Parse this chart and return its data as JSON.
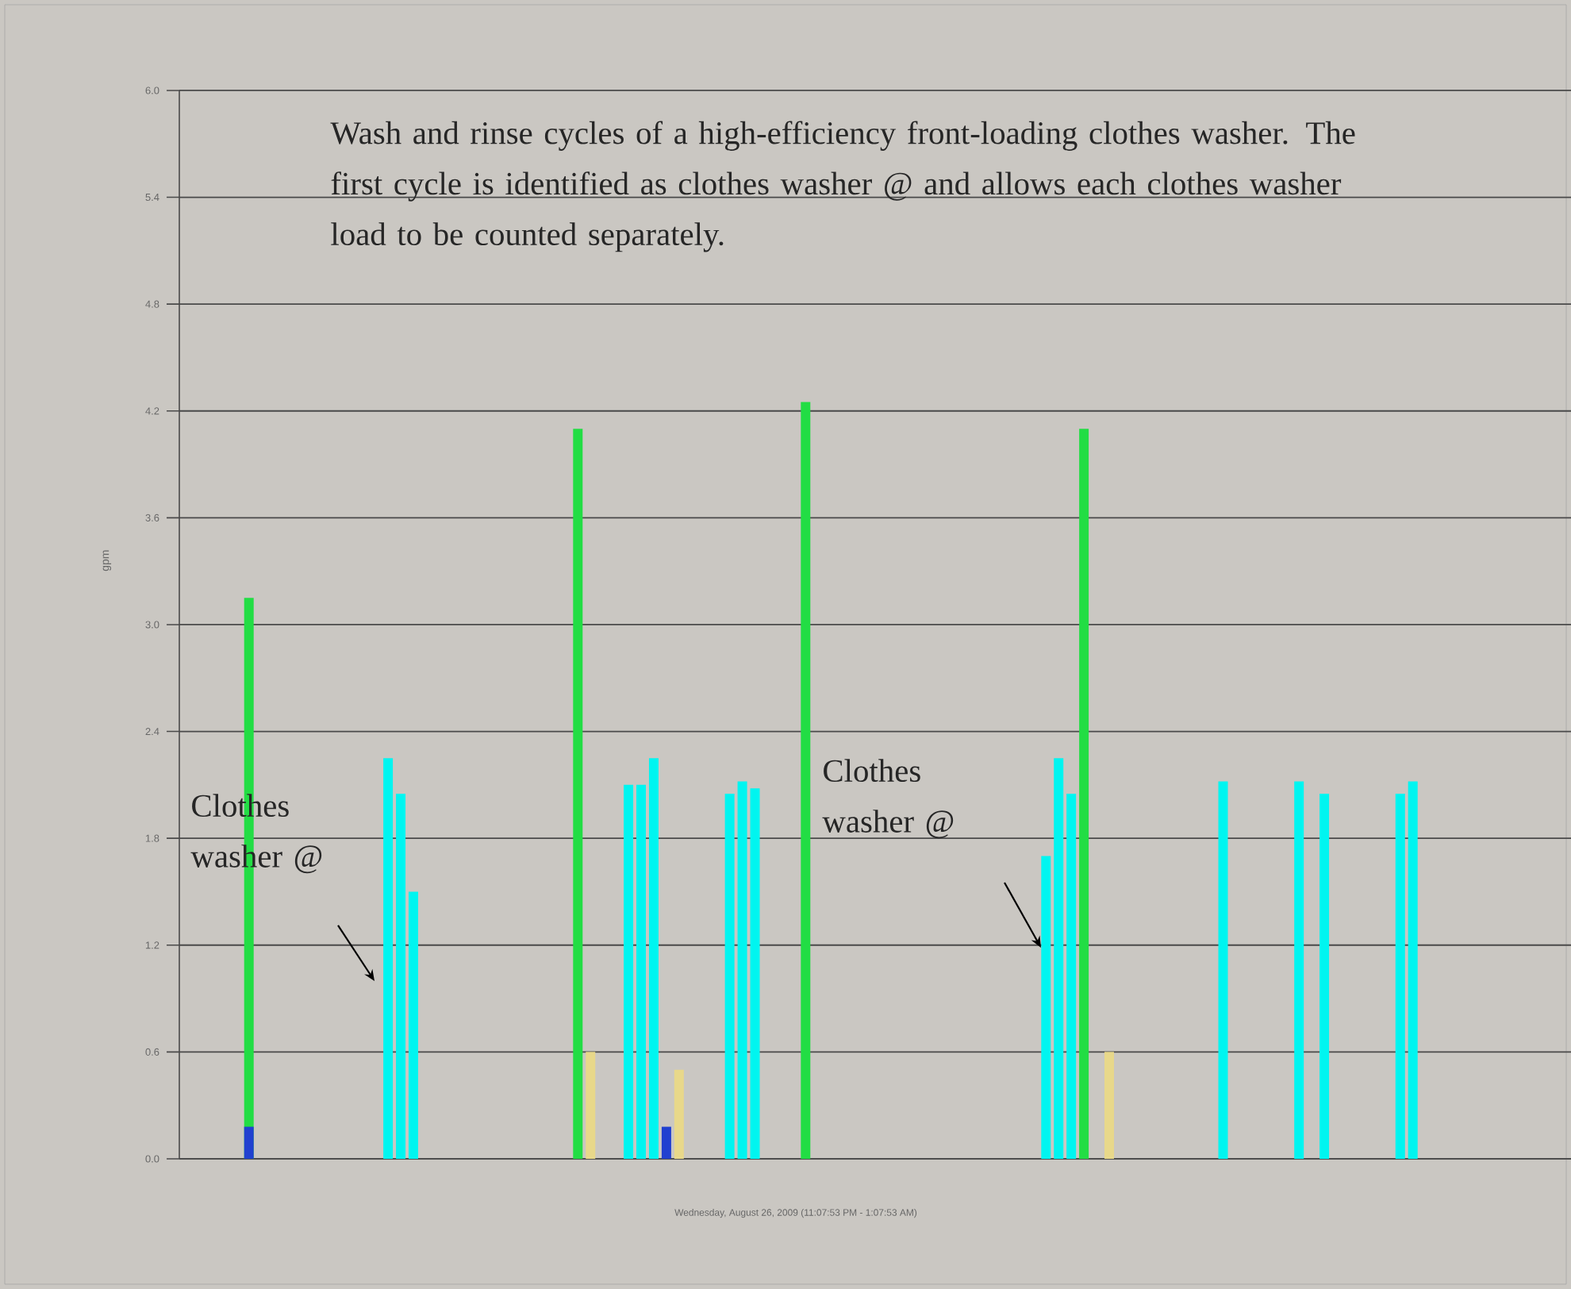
{
  "chart_data": {
    "type": "bar",
    "xlabel": "Wednesday, August 26, 2009 (11:07:53 PM - 1:07:53 AM)",
    "ylabel": "gpm",
    "categories": [
      null,
      null,
      null,
      null,
      null,
      null,
      null,
      null,
      null,
      null,
      null,
      null,
      null,
      null,
      null,
      null,
      null,
      null,
      null,
      null,
      null,
      null,
      null,
      null,
      null,
      null,
      null,
      null,
      null,
      null,
      null,
      null,
      null,
      null,
      null,
      null,
      null,
      null,
      null,
      null,
      null,
      null,
      null,
      null,
      null,
      null,
      null,
      null,
      null,
      null,
      null,
      null,
      null,
      null,
      null,
      null,
      null,
      null,
      null,
      null,
      null,
      null,
      null,
      null,
      null,
      null,
      null,
      null,
      null,
      null,
      null,
      null,
      null,
      null,
      null,
      null,
      null,
      null,
      null,
      null,
      null,
      null,
      null,
      null,
      null,
      null,
      null,
      null,
      null,
      null,
      null,
      null,
      null,
      null,
      null,
      null,
      null,
      null,
      null,
      null,
      null,
      null,
      null,
      null,
      null,
      null,
      null,
      null,
      null,
      null
    ],
    "series": [
      {
        "color": "#22dd44",
        "values": [
          null,
          null,
          null,
          null,
          null,
          3.15,
          null,
          null,
          null,
          null,
          null,
          null,
          null,
          null,
          null,
          null,
          null,
          null,
          null,
          null,
          null,
          null,
          null,
          null,
          null,
          null,
          null,
          null,
          null,
          null,
          null,
          4.1,
          null,
          null,
          null,
          null,
          null,
          null,
          null,
          null,
          null,
          null,
          null,
          null,
          null,
          null,
          null,
          null,
          null,
          4.25,
          null,
          null,
          null,
          null,
          null,
          null,
          null,
          null,
          null,
          null,
          null,
          null,
          null,
          null,
          null,
          null,
          null,
          null,
          null,
          null,
          null,
          4.1,
          null,
          null,
          null,
          null,
          null,
          null,
          null,
          null,
          null,
          null,
          null,
          null,
          null,
          null,
          null,
          null,
          null,
          null,
          null,
          null,
          null,
          null,
          null,
          null,
          null,
          null,
          null,
          null,
          null,
          null,
          null,
          null,
          null,
          null,
          null,
          null,
          null,
          null
        ]
      },
      {
        "color": "#00f5f0",
        "values": [
          null,
          null,
          null,
          null,
          null,
          null,
          null,
          null,
          null,
          null,
          null,
          null,
          null,
          null,
          null,
          null,
          2.25,
          2.05,
          1.5,
          null,
          null,
          null,
          null,
          null,
          null,
          null,
          null,
          null,
          null,
          null,
          null,
          null,
          null,
          null,
          null,
          2.1,
          2.1,
          2.25,
          null,
          null,
          null,
          null,
          null,
          2.05,
          2.12,
          2.08,
          null,
          null,
          null,
          null,
          null,
          null,
          null,
          null,
          null,
          null,
          null,
          null,
          null,
          null,
          null,
          null,
          null,
          null,
          null,
          null,
          null,
          null,
          1.7,
          2.25,
          2.05,
          null,
          null,
          null,
          null,
          null,
          null,
          null,
          null,
          null,
          null,
          null,
          2.12,
          null,
          null,
          null,
          null,
          null,
          2.12,
          null,
          2.05,
          null,
          null,
          null,
          null,
          null,
          2.05,
          2.12,
          null,
          null,
          null,
          null,
          null,
          null,
          null,
          null,
          null,
          null,
          null,
          null
        ]
      },
      {
        "color": "#e8d88a",
        "values": [
          null,
          null,
          null,
          null,
          null,
          null,
          null,
          null,
          null,
          null,
          null,
          null,
          null,
          null,
          null,
          null,
          null,
          null,
          null,
          null,
          null,
          null,
          null,
          null,
          null,
          null,
          null,
          null,
          null,
          null,
          null,
          null,
          0.6,
          null,
          null,
          null,
          null,
          null,
          null,
          0.5,
          null,
          null,
          null,
          null,
          null,
          null,
          null,
          null,
          null,
          null,
          null,
          null,
          null,
          null,
          null,
          null,
          null,
          null,
          null,
          null,
          null,
          null,
          null,
          null,
          null,
          null,
          null,
          null,
          null,
          null,
          null,
          null,
          null,
          0.6,
          null,
          null,
          null,
          null,
          null,
          null,
          null,
          null,
          null,
          null,
          null,
          null,
          null,
          null,
          null,
          null,
          null,
          null,
          null,
          null,
          null,
          null,
          null,
          null,
          null,
          null,
          null,
          null,
          null,
          null,
          null,
          null,
          null,
          null,
          null,
          null
        ]
      },
      {
        "color": "#2040d0",
        "values": [
          null,
          null,
          null,
          null,
          null,
          0.18,
          null,
          null,
          null,
          null,
          null,
          null,
          null,
          null,
          null,
          null,
          null,
          null,
          null,
          null,
          null,
          null,
          null,
          null,
          null,
          null,
          null,
          null,
          null,
          null,
          null,
          null,
          null,
          null,
          null,
          null,
          null,
          null,
          0.18,
          null,
          null,
          null,
          null,
          null,
          null,
          null,
          null,
          null,
          null,
          null,
          null,
          null,
          null,
          null,
          null,
          null,
          null,
          null,
          null,
          null,
          null,
          null,
          null,
          null,
          null,
          null,
          null,
          null,
          null,
          null,
          null,
          null,
          null,
          null,
          null,
          null,
          null,
          null,
          null,
          null,
          null,
          null,
          null,
          null,
          null,
          null,
          null,
          null,
          null,
          null,
          null,
          null,
          null,
          null,
          null,
          null,
          null,
          null,
          null,
          null,
          null,
          null,
          null,
          null,
          null,
          null,
          null,
          null,
          null,
          null
        ]
      }
    ],
    "ylim": [
      0,
      6
    ],
    "yticks": [
      {
        "value": 0,
        "label": "0.0"
      },
      {
        "value": 0.6,
        "label": "0.6"
      },
      {
        "value": 1.2,
        "label": "1.2"
      },
      {
        "value": 1.8,
        "label": "1.8"
      },
      {
        "value": 2.4,
        "label": "2.4"
      },
      {
        "value": 3.0,
        "label": "3.0"
      },
      {
        "value": 3.6,
        "label": "3.6"
      },
      {
        "value": 4.2,
        "label": "4.2"
      },
      {
        "value": 4.8,
        "label": "4.8"
      },
      {
        "value": 5.4,
        "label": "5.4"
      },
      {
        "value": 6.0,
        "label": "6.0"
      }
    ],
    "grid": "y",
    "annotations": [
      "Wash and rinse cycles of a high-efficiency front-loading clothes washer. The first cycle is identified as clothes washer @ and allows each clothes washer load to be counted separately.",
      "Clothes washer @",
      "Clothes washer @"
    ]
  }
}
